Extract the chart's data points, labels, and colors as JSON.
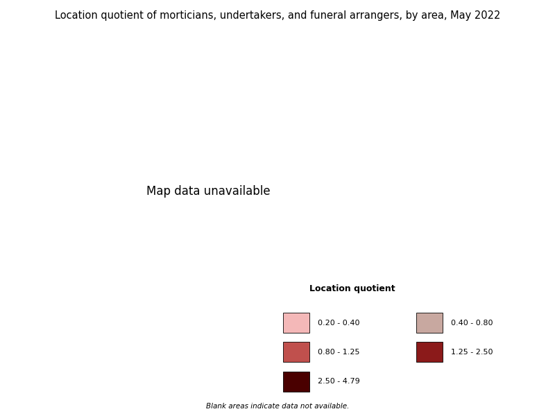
{
  "title": "Location quotient of morticians, undertakers, and funeral arrangers, by area, May 2022",
  "title_fontsize": 10.5,
  "legend_title": "Location quotient",
  "legend_labels": [
    "0.20 - 0.40",
    "0.40 - 0.80",
    "0.80 - 1.25",
    "1.25 - 2.50",
    "2.50 - 4.79"
  ],
  "legend_colors": [
    "#f4b8b8",
    "#c8a8a0",
    "#c0504d",
    "#8b1a1a",
    "#4a0000"
  ],
  "blank_note": "Blank areas indicate data not available.",
  "background_color": "#ffffff",
  "no_data_color": "#ffffff",
  "border_color": "#333333",
  "figsize": [
    8.0,
    6.0
  ],
  "dpi": 100
}
